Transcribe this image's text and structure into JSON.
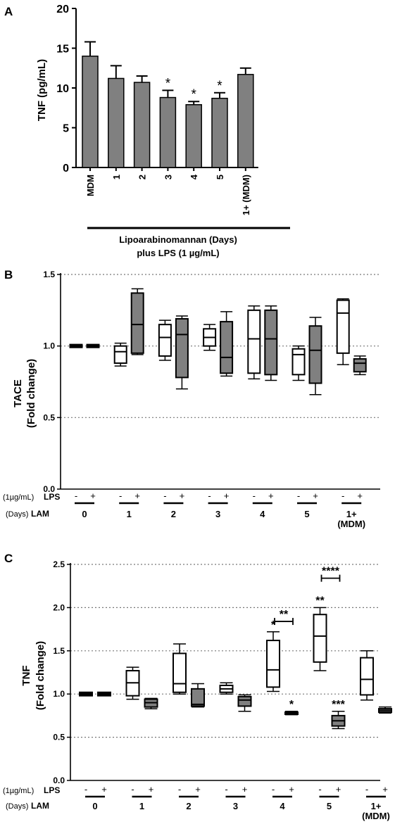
{
  "chart_data": [
    {
      "panel": "A",
      "type": "bar",
      "ylabel": "TNF (pg/mL)",
      "ylim": [
        0,
        20
      ],
      "yticks": [
        0,
        5,
        10,
        15,
        20
      ],
      "categories": [
        "MDM",
        "1",
        "2",
        "3",
        "4",
        "5",
        "1+ (MDM)"
      ],
      "values": [
        14.0,
        11.2,
        10.7,
        8.8,
        7.9,
        8.7,
        11.7
      ],
      "errors": [
        1.8,
        1.6,
        0.8,
        0.9,
        0.4,
        0.7,
        0.8
      ],
      "significance": [
        "",
        "",
        "",
        "*",
        "*",
        "*",
        ""
      ],
      "group_label_line1": "Lipoarabinomannan (Days)",
      "group_label_line2": "plus LPS (1 µg/mL)",
      "bar_color": "#808080"
    },
    {
      "panel": "B",
      "type": "box",
      "ylabel": "TACE",
      "ylabel2": "(Fold change)",
      "ylim": [
        0,
        1.5
      ],
      "yticks": [
        "0.0",
        "0.5",
        "1.0",
        "1.5"
      ],
      "grid": [
        0.5,
        1.0,
        1.5
      ],
      "groups": [
        "0",
        "1",
        "2",
        "3",
        "4",
        "5",
        "1+"
      ],
      "group_sub": [
        "",
        "",
        "",
        "",
        "",
        "",
        "(MDM)"
      ],
      "lps_row_label": "(1µg/mL)",
      "lps_row_label_b": "LPS",
      "lam_row_label": "(Days)",
      "lam_row_label_b": "LAM",
      "minus": "-",
      "plus": "+",
      "boxes": [
        {
          "group": 0,
          "lps": "-",
          "fill": "#000000",
          "min": 0.99,
          "q1": 0.99,
          "median": 1.0,
          "q3": 1.01,
          "max": 1.01
        },
        {
          "group": 0,
          "lps": "+",
          "fill": "#000000",
          "min": 0.99,
          "q1": 0.99,
          "median": 1.0,
          "q3": 1.01,
          "max": 1.01
        },
        {
          "group": 1,
          "lps": "-",
          "fill": "#ffffff",
          "min": 0.86,
          "q1": 0.88,
          "median": 0.96,
          "q3": 1.0,
          "max": 1.02
        },
        {
          "group": 1,
          "lps": "+",
          "fill": "#808080",
          "min": 0.94,
          "q1": 0.95,
          "median": 1.15,
          "q3": 1.37,
          "max": 1.4
        },
        {
          "group": 2,
          "lps": "-",
          "fill": "#ffffff",
          "min": 0.9,
          "q1": 0.93,
          "median": 1.06,
          "q3": 1.15,
          "max": 1.18
        },
        {
          "group": 2,
          "lps": "+",
          "fill": "#808080",
          "min": 0.7,
          "q1": 0.78,
          "median": 1.08,
          "q3": 1.19,
          "max": 1.21
        },
        {
          "group": 3,
          "lps": "-",
          "fill": "#ffffff",
          "min": 0.97,
          "q1": 1.0,
          "median": 1.06,
          "q3": 1.12,
          "max": 1.15
        },
        {
          "group": 3,
          "lps": "+",
          "fill": "#808080",
          "min": 0.79,
          "q1": 0.81,
          "median": 0.92,
          "q3": 1.17,
          "max": 1.24
        },
        {
          "group": 4,
          "lps": "-",
          "fill": "#ffffff",
          "min": 0.77,
          "q1": 0.81,
          "median": 1.05,
          "q3": 1.25,
          "max": 1.28
        },
        {
          "group": 4,
          "lps": "+",
          "fill": "#808080",
          "min": 0.76,
          "q1": 0.8,
          "median": 1.05,
          "q3": 1.25,
          "max": 1.28
        },
        {
          "group": 5,
          "lps": "-",
          "fill": "#ffffff",
          "min": 0.76,
          "q1": 0.8,
          "median": 0.94,
          "q3": 0.98,
          "max": 1.0
        },
        {
          "group": 5,
          "lps": "+",
          "fill": "#808080",
          "min": 0.66,
          "q1": 0.74,
          "median": 0.97,
          "q3": 1.14,
          "max": 1.2
        },
        {
          "group": 6,
          "lps": "-",
          "fill": "#ffffff",
          "min": 0.87,
          "q1": 0.95,
          "median": 1.23,
          "q3": 1.32,
          "max": 1.33
        },
        {
          "group": 6,
          "lps": "+",
          "fill": "#808080",
          "min": 0.8,
          "q1": 0.82,
          "median": 0.88,
          "q3": 0.91,
          "max": 0.93
        }
      ]
    },
    {
      "panel": "C",
      "type": "box",
      "ylabel": "TNF",
      "ylabel2": "(Fold change)",
      "ylim": [
        0,
        2.5
      ],
      "yticks": [
        "0.0",
        "0.5",
        "1.0",
        "1.5",
        "2.0",
        "2.5"
      ],
      "grid": [
        0.5,
        1.0,
        1.5,
        2.0,
        2.5
      ],
      "groups": [
        "0",
        "1",
        "2",
        "3",
        "4",
        "5",
        "1+"
      ],
      "group_sub": [
        "",
        "",
        "",
        "",
        "",
        "",
        "(MDM)"
      ],
      "lps_row_label": "(1µg/mL)",
      "lps_row_label_b": "LPS",
      "lam_row_label": "(Days)",
      "lam_row_label_b": "LAM",
      "minus": "-",
      "plus": "+",
      "boxes": [
        {
          "group": 0,
          "lps": "-",
          "fill": "#000000",
          "min": 0.98,
          "q1": 0.98,
          "median": 1.0,
          "q3": 1.02,
          "max": 1.02,
          "sig": ""
        },
        {
          "group": 0,
          "lps": "+",
          "fill": "#000000",
          "min": 0.98,
          "q1": 0.98,
          "median": 1.0,
          "q3": 1.02,
          "max": 1.02,
          "sig": ""
        },
        {
          "group": 1,
          "lps": "-",
          "fill": "#ffffff",
          "min": 0.94,
          "q1": 0.98,
          "median": 1.13,
          "q3": 1.27,
          "max": 1.31,
          "sig": ""
        },
        {
          "group": 1,
          "lps": "+",
          "fill": "#808080",
          "min": 0.83,
          "q1": 0.85,
          "median": 0.9,
          "q3": 0.94,
          "max": 0.95,
          "sig": ""
        },
        {
          "group": 2,
          "lps": "-",
          "fill": "#ffffff",
          "min": 1.0,
          "q1": 1.02,
          "median": 1.12,
          "q3": 1.47,
          "max": 1.58,
          "sig": ""
        },
        {
          "group": 2,
          "lps": "+",
          "fill": "#808080",
          "min": 0.85,
          "q1": 0.86,
          "median": 0.88,
          "q3": 1.06,
          "max": 1.12,
          "sig": ""
        },
        {
          "group": 3,
          "lps": "-",
          "fill": "#ffffff",
          "min": 1.0,
          "q1": 1.02,
          "median": 1.06,
          "q3": 1.1,
          "max": 1.13,
          "sig": ""
        },
        {
          "group": 3,
          "lps": "+",
          "fill": "#808080",
          "min": 0.8,
          "q1": 0.86,
          "median": 0.93,
          "q3": 0.97,
          "max": 0.99,
          "sig": ""
        },
        {
          "group": 4,
          "lps": "-",
          "fill": "#ffffff",
          "min": 1.03,
          "q1": 1.08,
          "median": 1.28,
          "q3": 1.62,
          "max": 1.72,
          "sig": "*"
        },
        {
          "group": 4,
          "lps": "+",
          "fill": "#808080",
          "min": 0.76,
          "q1": 0.77,
          "median": 0.78,
          "q3": 0.79,
          "max": 0.8,
          "sig": "*"
        },
        {
          "group": 5,
          "lps": "-",
          "fill": "#ffffff",
          "min": 1.27,
          "q1": 1.37,
          "median": 1.67,
          "q3": 1.92,
          "max": 2.0,
          "sig": "**"
        },
        {
          "group": 5,
          "lps": "+",
          "fill": "#808080",
          "min": 0.6,
          "q1": 0.63,
          "median": 0.69,
          "q3": 0.75,
          "max": 0.8,
          "sig": "***"
        },
        {
          "group": 6,
          "lps": "-",
          "fill": "#ffffff",
          "min": 0.93,
          "q1": 0.99,
          "median": 1.17,
          "q3": 1.42,
          "max": 1.5,
          "sig": ""
        },
        {
          "group": 6,
          "lps": "+",
          "fill": "#808080",
          "min": 0.78,
          "q1": 0.79,
          "median": 0.81,
          "q3": 0.83,
          "max": 0.85,
          "sig": ""
        }
      ],
      "brackets": [
        {
          "group": 4,
          "value": 1.84,
          "label": "**"
        },
        {
          "group": 5,
          "value": 2.34,
          "label": "****"
        }
      ]
    }
  ]
}
